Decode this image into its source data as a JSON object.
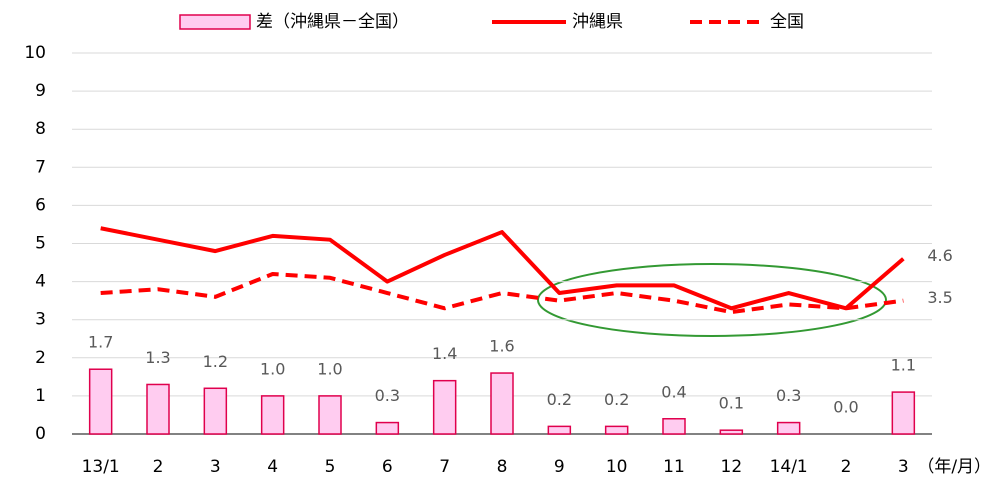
{
  "chart_data": {
    "type": "combo",
    "categories": [
      "13/1",
      "2",
      "3",
      "4",
      "5",
      "6",
      "7",
      "8",
      "9",
      "10",
      "11",
      "12",
      "14/1",
      "2",
      "3"
    ],
    "x_unit_label": "（年/月）",
    "series": [
      {
        "name": "差（沖縄県－全国）",
        "type": "bar",
        "color": "#ffccf0",
        "edge_color": "#e0004d",
        "values": [
          1.7,
          1.3,
          1.2,
          1.0,
          1.0,
          0.3,
          1.4,
          1.6,
          0.2,
          0.2,
          0.4,
          0.1,
          0.3,
          0.0,
          1.1
        ],
        "value_labels": [
          "1.7",
          "1.3",
          "1.2",
          "1.0",
          "1.0",
          "0.3",
          "1.4",
          "1.6",
          "0.2",
          "0.2",
          "0.4",
          "0.1",
          "0.3",
          "0.0",
          "1.1"
        ]
      },
      {
        "name": "沖縄県",
        "type": "line",
        "line_style": "solid",
        "color": "#ff0000",
        "values": [
          5.4,
          5.1,
          4.8,
          5.2,
          5.1,
          4.0,
          4.7,
          5.3,
          3.7,
          3.9,
          3.9,
          3.3,
          3.7,
          3.3,
          4.6
        ],
        "end_label": "4.6"
      },
      {
        "name": "全国",
        "type": "line",
        "line_style": "dashed",
        "color": "#ff0000",
        "values": [
          3.7,
          3.8,
          3.6,
          4.2,
          4.1,
          3.7,
          3.3,
          3.7,
          3.5,
          3.7,
          3.5,
          3.2,
          3.4,
          3.3,
          3.5
        ],
        "end_label": "3.5"
      }
    ],
    "ylim": [
      0,
      10
    ],
    "yticks": [
      0,
      1,
      2,
      3,
      4,
      5,
      6,
      7,
      8,
      9,
      10
    ],
    "grid": true,
    "legend": "top"
  }
}
